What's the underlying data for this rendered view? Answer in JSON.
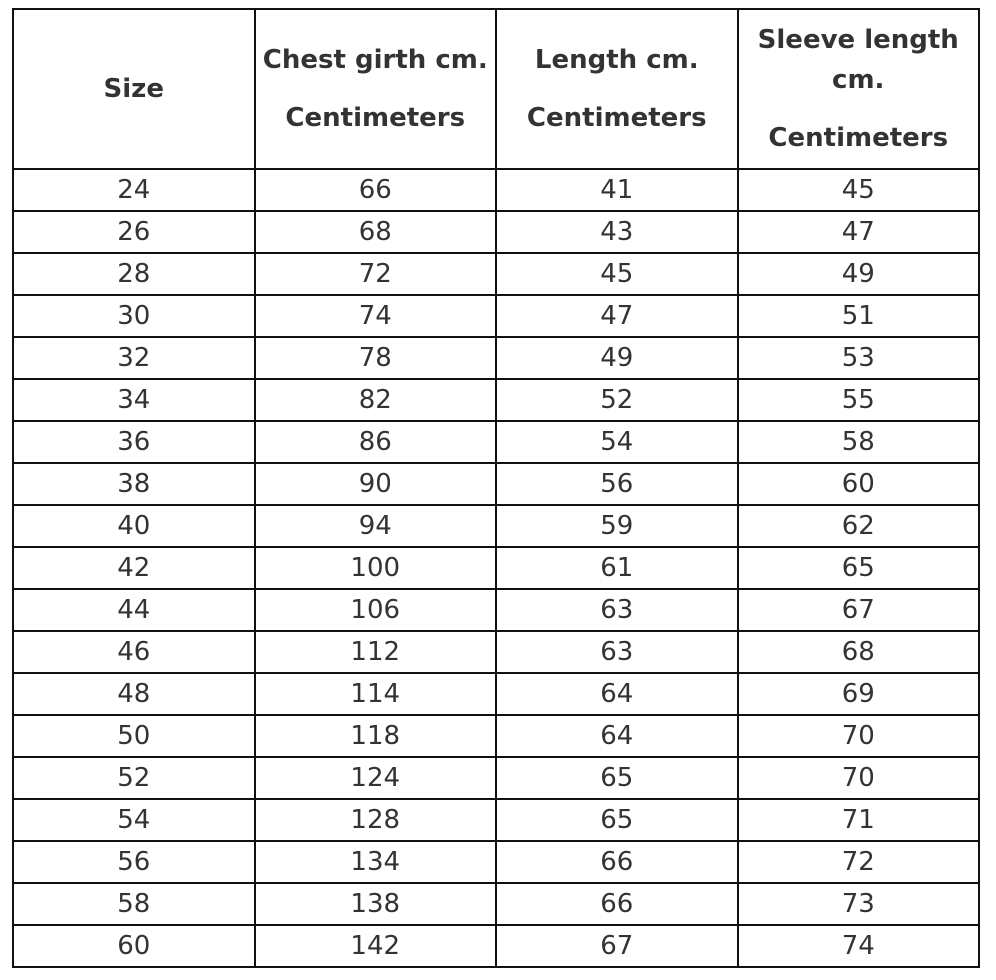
{
  "table": {
    "header": [
      {
        "label": "Size"
      },
      {
        "label": "Chest girth cm.",
        "unit": "Centimeters"
      },
      {
        "label": "Length cm.",
        "unit": "Centimeters"
      },
      {
        "label": "Sleeve length cm.",
        "unit": "Centimeters"
      }
    ],
    "rows": [
      [
        24,
        66,
        41,
        45
      ],
      [
        26,
        68,
        43,
        47
      ],
      [
        28,
        72,
        45,
        49
      ],
      [
        30,
        74,
        47,
        51
      ],
      [
        32,
        78,
        49,
        53
      ],
      [
        34,
        82,
        52,
        55
      ],
      [
        36,
        86,
        54,
        58
      ],
      [
        38,
        90,
        56,
        60
      ],
      [
        40,
        94,
        59,
        62
      ],
      [
        42,
        100,
        61,
        65
      ],
      [
        44,
        106,
        63,
        67
      ],
      [
        46,
        112,
        63,
        68
      ],
      [
        48,
        114,
        64,
        69
      ],
      [
        50,
        118,
        64,
        70
      ],
      [
        52,
        124,
        65,
        70
      ],
      [
        54,
        128,
        65,
        71
      ],
      [
        56,
        134,
        66,
        72
      ],
      [
        58,
        138,
        66,
        73
      ],
      [
        60,
        142,
        67,
        74
      ]
    ]
  }
}
